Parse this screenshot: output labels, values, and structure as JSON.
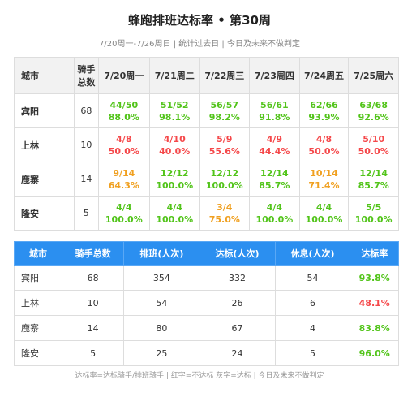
{
  "header": {
    "title": "蜂跑排班达标率 • 第30周",
    "subtitle": "7/20周一-7/26周日 | 统计过去日 | 今日及未来不做判定"
  },
  "daily_table": {
    "columns": [
      "城市",
      "骑手总数",
      "7/20周一",
      "7/21周二",
      "7/22周三",
      "7/23周四",
      "7/24周五",
      "7/25周六"
    ],
    "rows": [
      {
        "city": "宾阳",
        "riders": "68",
        "cells": [
          {
            "ratio": "44/50",
            "rate": "88.0%",
            "color": "#52c41a"
          },
          {
            "ratio": "51/52",
            "rate": "98.1%",
            "color": "#52c41a"
          },
          {
            "ratio": "56/57",
            "rate": "98.2%",
            "color": "#52c41a"
          },
          {
            "ratio": "56/61",
            "rate": "91.8%",
            "color": "#52c41a"
          },
          {
            "ratio": "62/66",
            "rate": "93.9%",
            "color": "#52c41a"
          },
          {
            "ratio": "63/68",
            "rate": "92.6%",
            "color": "#52c41a"
          }
        ]
      },
      {
        "city": "上林",
        "riders": "10",
        "cells": [
          {
            "ratio": "4/8",
            "rate": "50.0%",
            "color": "#f5484a"
          },
          {
            "ratio": "4/10",
            "rate": "40.0%",
            "color": "#f5484a"
          },
          {
            "ratio": "5/9",
            "rate": "55.6%",
            "color": "#f5484a"
          },
          {
            "ratio": "4/9",
            "rate": "44.4%",
            "color": "#f5484a"
          },
          {
            "ratio": "4/8",
            "rate": "50.0%",
            "color": "#f5484a"
          },
          {
            "ratio": "5/10",
            "rate": "50.0%",
            "color": "#f5484a"
          }
        ]
      },
      {
        "city": "鹿寨",
        "riders": "14",
        "cells": [
          {
            "ratio": "9/14",
            "rate": "64.3%",
            "color": "#f0a020"
          },
          {
            "ratio": "12/12",
            "rate": "100.0%",
            "color": "#52c41a"
          },
          {
            "ratio": "12/12",
            "rate": "100.0%",
            "color": "#52c41a"
          },
          {
            "ratio": "12/14",
            "rate": "85.7%",
            "color": "#52c41a"
          },
          {
            "ratio": "10/14",
            "rate": "71.4%",
            "color": "#f0a020"
          },
          {
            "ratio": "12/14",
            "rate": "85.7%",
            "color": "#52c41a"
          }
        ]
      },
      {
        "city": "隆安",
        "riders": "5",
        "cells": [
          {
            "ratio": "4/4",
            "rate": "100.0%",
            "color": "#52c41a"
          },
          {
            "ratio": "4/4",
            "rate": "100.0%",
            "color": "#52c41a"
          },
          {
            "ratio": "3/4",
            "rate": "75.0%",
            "color": "#f0a020"
          },
          {
            "ratio": "4/4",
            "rate": "100.0%",
            "color": "#52c41a"
          },
          {
            "ratio": "4/4",
            "rate": "100.0%",
            "color": "#52c41a"
          },
          {
            "ratio": "5/5",
            "rate": "100.0%",
            "color": "#52c41a"
          }
        ]
      }
    ]
  },
  "summary_table": {
    "columns": [
      "城市",
      "骑手总数",
      "排班(人次)",
      "达标(人次)",
      "休息(人次)",
      "达标率"
    ],
    "rows": [
      {
        "cells": [
          "宾阳",
          "68",
          "354",
          "332",
          "54",
          "93.8%"
        ],
        "color": "#52c41a"
      },
      {
        "cells": [
          "上林",
          "10",
          "54",
          "26",
          "6",
          "48.1%"
        ],
        "color": "#f5484a"
      },
      {
        "cells": [
          "鹿寨",
          "14",
          "80",
          "67",
          "4",
          "83.8%"
        ],
        "color": "#52c41a"
      },
      {
        "cells": [
          "隆安",
          "5",
          "25",
          "24",
          "5",
          "96.0%"
        ],
        "color": "#52c41a"
      }
    ]
  },
  "footer": "达标率=达标骑手/排班骑手 | 红字=不达标 灰字=达标 | 今日及未来不做判定"
}
